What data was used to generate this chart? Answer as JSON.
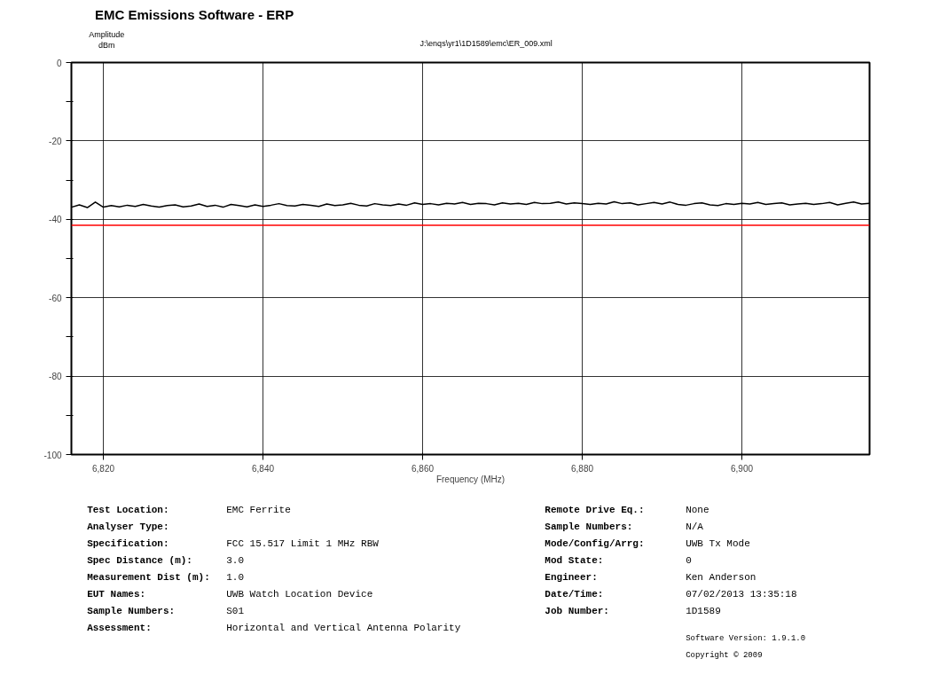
{
  "chart_data": {
    "type": "line",
    "title": "EMC Emissions Software - ERP",
    "subtitle": "J:\\enqs\\yr1\\1D1589\\emc\\ER_009.xml",
    "xlabel": "Frequency (MHz)",
    "ylabel": "Amplitude\ndBm",
    "x": [
      6816,
      6817,
      6818,
      6819,
      6820,
      6821,
      6822,
      6823,
      6824,
      6825,
      6826,
      6827,
      6828,
      6829,
      6830,
      6831,
      6832,
      6833,
      6834,
      6835,
      6836,
      6837,
      6838,
      6839,
      6840,
      6841,
      6842,
      6843,
      6844,
      6845,
      6846,
      6847,
      6848,
      6849,
      6850,
      6851,
      6852,
      6853,
      6854,
      6855,
      6856,
      6857,
      6858,
      6859,
      6860,
      6861,
      6862,
      6863,
      6864,
      6865,
      6866,
      6867,
      6868,
      6869,
      6870,
      6871,
      6872,
      6873,
      6874,
      6875,
      6876,
      6877,
      6878,
      6879,
      6880,
      6881,
      6882,
      6883,
      6884,
      6885,
      6886,
      6887,
      6888,
      6889,
      6890,
      6891,
      6892,
      6893,
      6894,
      6895,
      6896,
      6897,
      6898,
      6899,
      6900,
      6901,
      6902,
      6903,
      6904,
      6905,
      6906,
      6907,
      6908,
      6909,
      6910,
      6911,
      6912,
      6913,
      6914,
      6915,
      6916
    ],
    "series": [
      {
        "color": "#000000",
        "values": [
          -36.9,
          -36.3,
          -37.0,
          -35.6,
          -36.9,
          -36.5,
          -36.8,
          -36.4,
          -36.7,
          -36.2,
          -36.6,
          -36.9,
          -36.5,
          -36.3,
          -36.8,
          -36.6,
          -36.1,
          -36.7,
          -36.4,
          -36.9,
          -36.2,
          -36.5,
          -36.8,
          -36.3,
          -36.7,
          -36.4,
          -36.0,
          -36.5,
          -36.6,
          -36.2,
          -36.4,
          -36.7,
          -36.1,
          -36.5,
          -36.3,
          -35.9,
          -36.4,
          -36.6,
          -36.0,
          -36.3,
          -36.5,
          -36.1,
          -36.4,
          -35.8,
          -36.2,
          -36.0,
          -36.3,
          -35.9,
          -36.1,
          -35.7,
          -36.2,
          -35.9,
          -36.0,
          -36.3,
          -35.8,
          -36.1,
          -35.9,
          -36.2,
          -35.7,
          -36.0,
          -35.9,
          -35.6,
          -36.1,
          -35.8,
          -36.0,
          -36.2,
          -35.9,
          -36.1,
          -35.5,
          -36.0,
          -35.8,
          -36.3,
          -36.0,
          -35.7,
          -36.1,
          -35.6,
          -36.2,
          -36.4,
          -36.0,
          -35.8,
          -36.3,
          -36.5,
          -36.0,
          -36.2,
          -35.9,
          -36.1,
          -35.7,
          -36.2,
          -36.0,
          -35.8,
          -36.3,
          -36.1,
          -35.9,
          -36.2,
          -36.0,
          -35.7,
          -36.3,
          -35.9,
          -35.6,
          -36.1,
          -35.9
        ]
      }
    ],
    "xlim": [
      6816,
      6916
    ],
    "xticks": [
      {
        "value": 6820,
        "label": "6,820"
      },
      {
        "value": 6840,
        "label": "6,840"
      },
      {
        "value": 6860,
        "label": "6,860"
      },
      {
        "value": 6880,
        "label": "6,880"
      },
      {
        "value": 6900,
        "label": "6,900"
      }
    ],
    "ylim": [
      -100,
      0
    ],
    "yticks": [
      -100,
      {
        "value": -90,
        "label": null
      },
      -80,
      {
        "value": -70,
        "label": null
      },
      -60,
      {
        "value": -50,
        "label": null
      },
      -40,
      {
        "value": -30,
        "label": null
      },
      -20,
      {
        "value": -10,
        "label": null
      },
      0
    ],
    "grid": true,
    "marker": "none",
    "line_style": "solid",
    "ref_lines": [
      {
        "axis": "y",
        "value": -41.5,
        "color": "#ff0000"
      }
    ],
    "annotations": [
      "Test Location:",
      "EMC Ferrite",
      "Analyser Type:",
      "Specification:",
      "FCC 15.517 Limit 1 MHz RBW",
      "Spec Distance (m):",
      "3.0",
      "Measurement Dist (m):",
      "1.0",
      "EUT Names:",
      "UWB Watch Location Device",
      "Sample Numbers:",
      "S01",
      "Assessment:",
      "Horizontal and Vertical Antenna Polarity",
      "Remote Drive Eq.:",
      "None",
      "Sample Numbers:",
      "N/A",
      "Mode/Config/Arrg:",
      "UWB Tx Mode",
      "Mod State:",
      "0",
      "Engineer:",
      "Ken Anderson",
      "Date/Time:",
      "07/02/2013 13:35:18",
      "Job Number:",
      "1D1589",
      "Software Version: 1.9.1.0",
      "Copyright © 2009"
    ]
  }
}
